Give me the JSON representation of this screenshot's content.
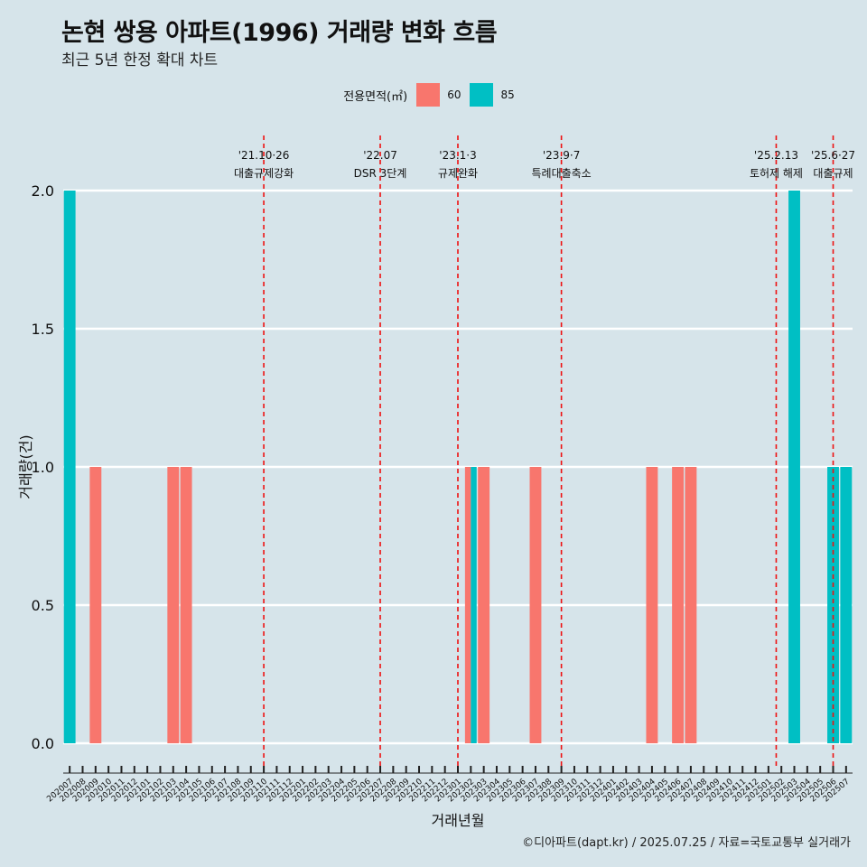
{
  "title": "논현 쌍용 아파트(1996) 거래량 변화 흐름",
  "subtitle": "최근 5년 한정 확대 차트",
  "caption": "©디아파트(dapt.kr) / 2025.07.25 / 자료=국토교통부 실거래가",
  "legend": {
    "title": "전용면적(㎡)",
    "items": [
      {
        "label": "60",
        "color": "#f8766d"
      },
      {
        "label": "85",
        "color": "#00bfc4"
      }
    ]
  },
  "chart_data": {
    "type": "bar",
    "xlabel": "거래년월",
    "ylabel": "거래량(건)",
    "ylim": [
      0,
      2
    ],
    "yticks": [
      0.0,
      0.5,
      1.0,
      1.5,
      2.0
    ],
    "categories": [
      "202007",
      "202008",
      "202009",
      "202010",
      "202011",
      "202012",
      "202101",
      "202102",
      "202103",
      "202104",
      "202105",
      "202106",
      "202107",
      "202108",
      "202109",
      "202110",
      "202111",
      "202112",
      "202201",
      "202202",
      "202203",
      "202204",
      "202205",
      "202206",
      "202207",
      "202208",
      "202209",
      "202210",
      "202211",
      "202212",
      "202301",
      "202302",
      "202303",
      "202304",
      "202305",
      "202306",
      "202307",
      "202308",
      "202309",
      "202310",
      "202311",
      "202312",
      "202401",
      "202402",
      "202403",
      "202404",
      "202405",
      "202406",
      "202407",
      "202408",
      "202409",
      "202410",
      "202411",
      "202412",
      "202501",
      "202502",
      "202503",
      "202504",
      "202505",
      "202506",
      "202507"
    ],
    "series": [
      {
        "name": "60",
        "color": "#f8766d",
        "values": [
          0,
          0,
          1,
          0,
          0,
          0,
          0,
          0,
          1,
          1,
          0,
          0,
          0,
          0,
          0,
          0,
          0,
          0,
          0,
          0,
          0,
          0,
          0,
          0,
          0,
          0,
          0,
          0,
          0,
          0,
          0,
          1,
          1,
          0,
          0,
          0,
          1,
          0,
          0,
          0,
          0,
          0,
          0,
          0,
          0,
          1,
          0,
          1,
          1,
          0,
          0,
          0,
          0,
          0,
          0,
          0,
          0,
          0,
          0,
          0,
          0
        ]
      },
      {
        "name": "85",
        "color": "#00bfc4",
        "values": [
          2,
          0,
          0,
          0,
          0,
          0,
          0,
          0,
          0,
          0,
          0,
          0,
          0,
          0,
          0,
          0,
          0,
          0,
          0,
          0,
          0,
          0,
          0,
          0,
          0,
          0,
          0,
          0,
          0,
          0,
          0,
          1,
          0,
          0,
          0,
          0,
          0,
          0,
          0,
          0,
          0,
          0,
          0,
          0,
          0,
          0,
          0,
          0,
          0,
          0,
          0,
          0,
          0,
          0,
          0,
          0,
          2,
          0,
          0,
          1,
          1
        ]
      }
    ],
    "events": [
      {
        "date": "'21.10·26",
        "label": "대출규제강화",
        "month": "202110"
      },
      {
        "date": "'22.07",
        "label": "DSR 3단계",
        "month": "202207"
      },
      {
        "date": "'23.1·3",
        "label": "규제완화",
        "month": "202301"
      },
      {
        "date": "'23.9·7",
        "label": "특례대출축소",
        "month": "202309"
      },
      {
        "date": "'25.2.13",
        "label": "토허제 해제",
        "month": "202502"
      },
      {
        "date": "'25.6·27",
        "label": "대출규제",
        "month": "202506"
      }
    ]
  }
}
